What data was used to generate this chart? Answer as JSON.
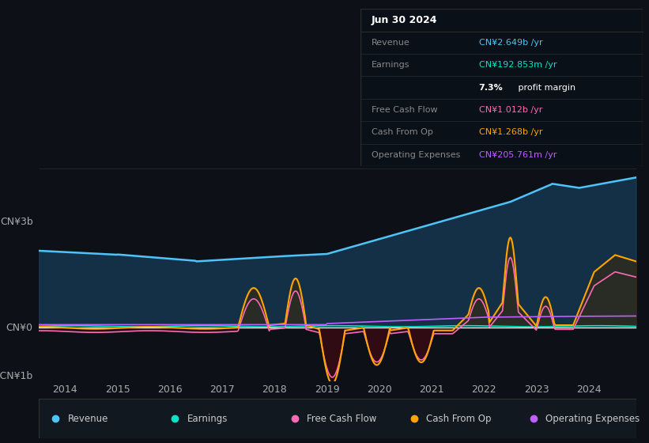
{
  "bg_color": "#0d1117",
  "plot_bg_color": "#0d1117",
  "ylim": [
    -1.0,
    3.5
  ],
  "xlim_start": 2013.5,
  "xlim_end": 2024.9,
  "xticks": [
    2014,
    2015,
    2016,
    2017,
    2018,
    2019,
    2020,
    2021,
    2022,
    2023,
    2024
  ],
  "info_title": "Jun 30 2024",
  "info_rows": [
    {
      "label": "Revenue",
      "value": "CN¥2.649b /yr",
      "value_color": "#4fc3f7"
    },
    {
      "label": "Earnings",
      "value": "CN¥192.853m /yr",
      "value_color": "#00e5c8"
    },
    {
      "label": "",
      "value": "7.3% profit margin",
      "value_color": "#ffffff",
      "bold_prefix": "7.3%"
    },
    {
      "label": "Free Cash Flow",
      "value": "CN¥1.012b /yr",
      "value_color": "#ff69b4"
    },
    {
      "label": "Cash From Op",
      "value": "CN¥1.268b /yr",
      "value_color": "#ffa500"
    },
    {
      "label": "Operating Expenses",
      "value": "CN¥205.761m /yr",
      "value_color": "#bf5fff"
    }
  ],
  "legend": [
    {
      "label": "Revenue",
      "color": "#4fc3f7"
    },
    {
      "label": "Earnings",
      "color": "#00e5c8"
    },
    {
      "label": "Free Cash Flow",
      "color": "#ff69b4"
    },
    {
      "label": "Cash From Op",
      "color": "#ffa500"
    },
    {
      "label": "Operating Expenses",
      "color": "#bf5fff"
    }
  ],
  "revenue_color": "#4fc3f7",
  "earnings_color": "#00e5c8",
  "fcf_color": "#ff69b4",
  "cashfromop_color": "#ffa500",
  "opex_color": "#bf5fff",
  "revenue_fill_color": "#1a4a6e",
  "cashfromop_fill_pos_color": "#3a2a0a",
  "cashfromop_fill_neg_color": "#3a0a0a",
  "fcf_fill_neg_color": "#3a0a1a",
  "zero_line_color": "#ffffff",
  "grid_color": "#1e2a38",
  "separator_color": "#333333",
  "tick_color": "#aaaaaa",
  "label_color": "#888888",
  "legend_bg": "#111820"
}
